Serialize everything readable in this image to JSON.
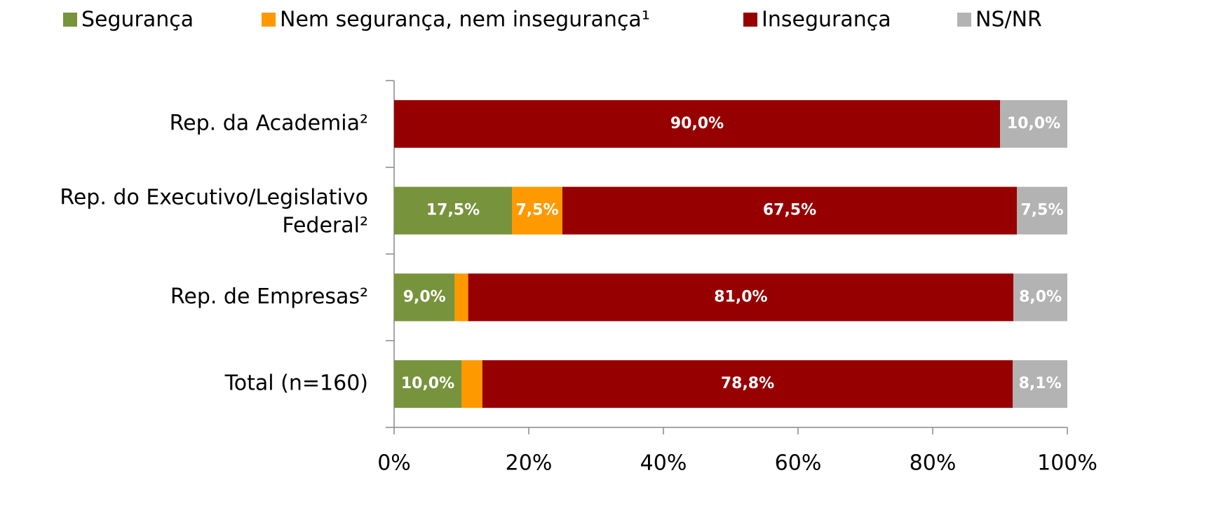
{
  "chart_data": {
    "type": "stacked_barh",
    "categories": [
      "Rep. da Academia²",
      "Rep. do Executivo/Legislativo Federal²",
      "Rep. de Empresas²",
      "Total (n=160)"
    ],
    "series": [
      {
        "name": "Segurança",
        "color": "#77933c",
        "values": [
          0,
          17.5,
          9.0,
          10.0
        ],
        "value_labels": [
          null,
          "17,5%",
          "9,0%",
          "10,0%"
        ]
      },
      {
        "name": "Nem segurança, nem insegurança¹",
        "color": "#ff9900",
        "values": [
          0,
          7.5,
          2.0,
          3.1
        ],
        "value_labels": [
          null,
          "7,5%",
          null,
          null
        ]
      },
      {
        "name": "Insegurança",
        "color": "#960000",
        "values": [
          90.0,
          67.5,
          81.0,
          78.8
        ],
        "value_labels": [
          "90,0%",
          "67,5%",
          "81,0%",
          "78,8%"
        ]
      },
      {
        "name": "NS/NR",
        "color": "#b3b3b3",
        "values": [
          10.0,
          7.5,
          8.0,
          8.1
        ],
        "value_labels": [
          "10,0%",
          "7,5%",
          "8,0%",
          "8,1%"
        ]
      }
    ],
    "xlim": [
      0,
      100
    ],
    "xticks": [
      {
        "value": 0,
        "label": "0%"
      },
      {
        "value": 20,
        "label": "20%"
      },
      {
        "value": 40,
        "label": "40%"
      },
      {
        "value": 60,
        "label": "60%"
      },
      {
        "value": 80,
        "label": "80%"
      },
      {
        "value": 100,
        "label": "100%"
      }
    ],
    "legend": "top"
  }
}
